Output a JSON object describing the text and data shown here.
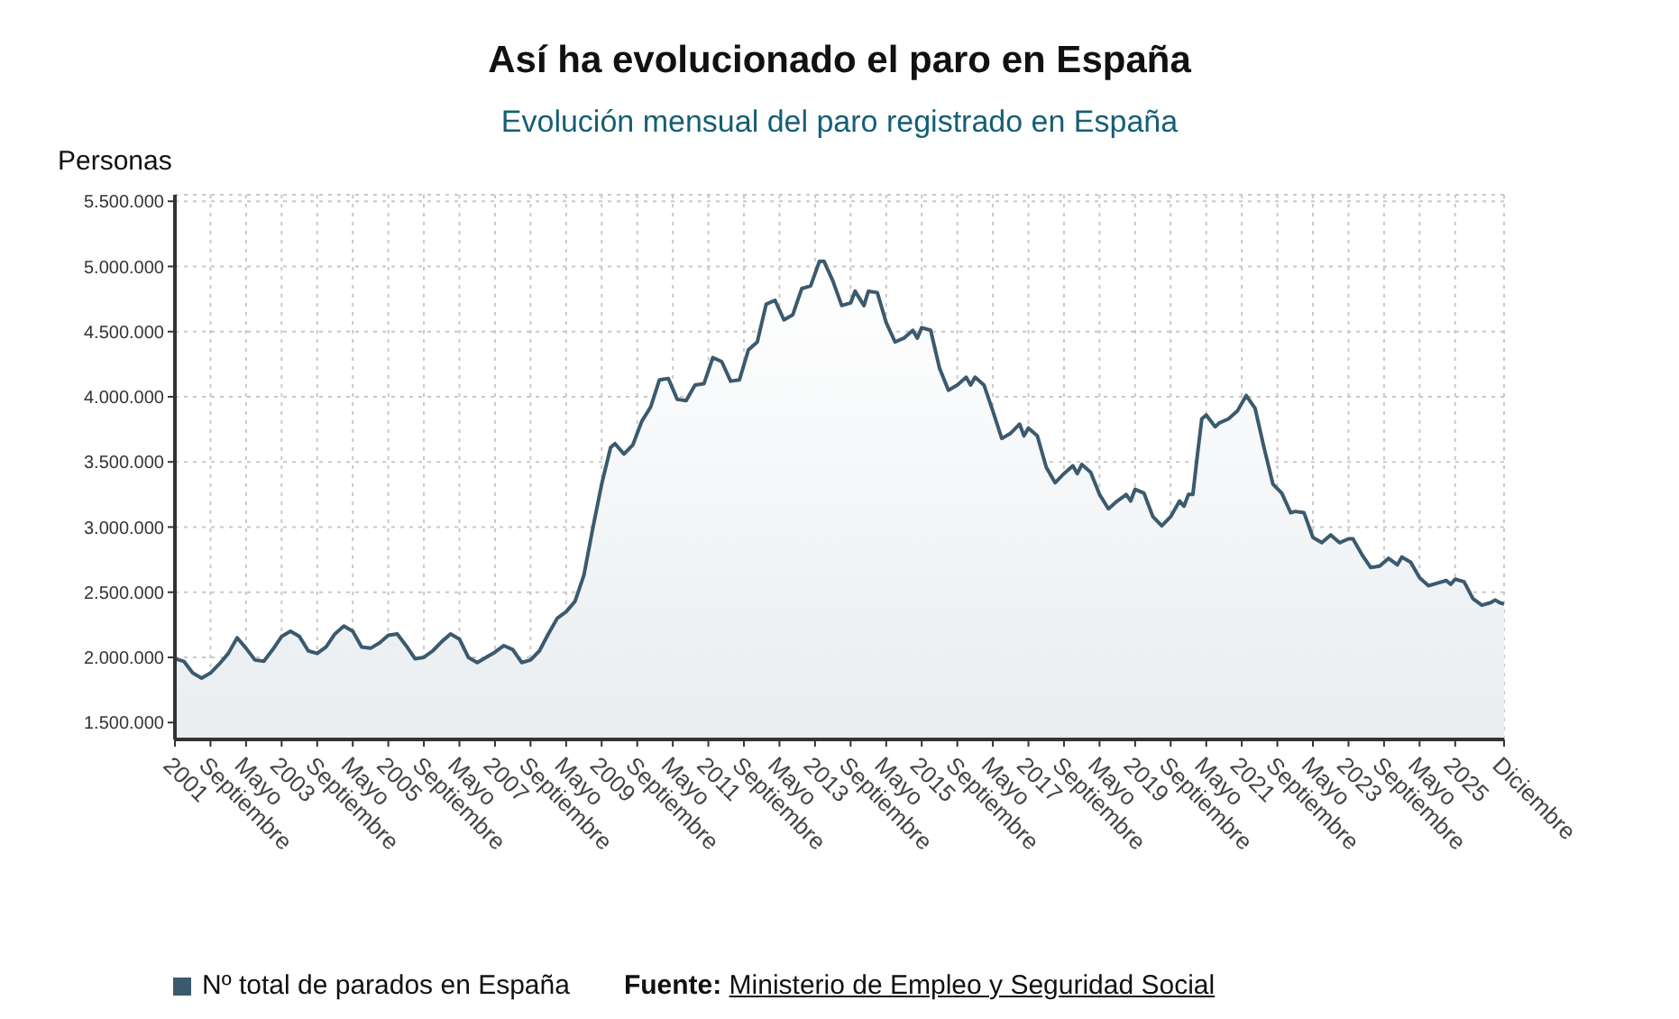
{
  "chart_data": {
    "type": "area",
    "title": "Así ha evolucionado el paro en España",
    "subtitle": "Evolución mensual del paro registrado en España",
    "ylabel": "Personas",
    "annotations": [
      "Fuente: Ministerio de Empleo y Seguridad Social"
    ],
    "x": [
      "2001-01",
      "2001-03",
      "2001-05",
      "2001-07",
      "2001-09",
      "2001-11",
      "2002-01",
      "2002-03",
      "2002-05",
      "2002-07",
      "2002-09",
      "2002-11",
      "2003-01",
      "2003-03",
      "2003-05",
      "2003-07",
      "2003-09",
      "2003-11",
      "2004-01",
      "2004-03",
      "2004-05",
      "2004-07",
      "2004-09",
      "2004-11",
      "2005-01",
      "2005-03",
      "2005-05",
      "2005-07",
      "2005-09",
      "2005-11",
      "2006-01",
      "2006-03",
      "2006-05",
      "2006-07",
      "2006-09",
      "2006-11",
      "2007-01",
      "2007-03",
      "2007-05",
      "2007-07",
      "2007-09",
      "2007-11",
      "2008-01",
      "2008-03",
      "2008-05",
      "2008-07",
      "2008-09",
      "2008-11",
      "2009-01",
      "2009-03",
      "2009-04",
      "2009-06",
      "2009-08",
      "2009-10",
      "2009-12",
      "2010-02",
      "2010-04",
      "2010-06",
      "2010-08",
      "2010-10",
      "2010-12",
      "2011-02",
      "2011-04",
      "2011-06",
      "2011-08",
      "2011-10",
      "2011-12",
      "2012-02",
      "2012-04",
      "2012-06",
      "2012-08",
      "2012-10",
      "2012-12",
      "2013-02",
      "2013-03",
      "2013-05",
      "2013-07",
      "2013-09",
      "2013-10",
      "2013-12",
      "2014-01",
      "2014-03",
      "2014-05",
      "2014-07",
      "2014-09",
      "2014-11",
      "2014-12",
      "2015-01",
      "2015-03",
      "2015-05",
      "2015-07",
      "2015-09",
      "2015-11",
      "2015-12",
      "2016-01",
      "2016-03",
      "2016-05",
      "2016-07",
      "2016-09",
      "2016-11",
      "2016-12",
      "2017-01",
      "2017-03",
      "2017-05",
      "2017-07",
      "2017-09",
      "2017-11",
      "2017-12",
      "2018-01",
      "2018-03",
      "2018-05",
      "2018-07",
      "2018-09",
      "2018-11",
      "2018-12",
      "2019-01",
      "2019-03",
      "2019-05",
      "2019-07",
      "2019-09",
      "2019-11",
      "2019-12",
      "2020-01",
      "2020-02",
      "2020-03",
      "2020-04",
      "2020-05",
      "2020-07",
      "2020-08",
      "2020-10",
      "2020-12",
      "2021-02",
      "2021-04",
      "2021-06",
      "2021-08",
      "2021-10",
      "2021-12",
      "2022-01",
      "2022-03",
      "2022-05",
      "2022-07",
      "2022-09",
      "2022-11",
      "2023-01",
      "2023-02",
      "2023-04",
      "2023-06",
      "2023-08",
      "2023-10",
      "2023-12",
      "2024-01",
      "2024-03",
      "2024-05",
      "2024-07",
      "2024-09",
      "2024-11",
      "2024-12",
      "2025-01",
      "2025-03",
      "2025-05",
      "2025-07",
      "2025-09",
      "2025-10",
      "2025-11",
      "2025-12"
    ],
    "series": [
      {
        "name": "Nº total de parados en España",
        "color": "#3b5a6e",
        "values": [
          1990000,
          1970000,
          1880000,
          1840000,
          1880000,
          1950000,
          2030000,
          2150000,
          2070000,
          1980000,
          1970000,
          2060000,
          2160000,
          2200000,
          2160000,
          2050000,
          2030000,
          2080000,
          2180000,
          2240000,
          2200000,
          2080000,
          2070000,
          2110000,
          2170000,
          2180000,
          2090000,
          1990000,
          2000000,
          2050000,
          2120000,
          2180000,
          2140000,
          2000000,
          1960000,
          2000000,
          2040000,
          2090000,
          2060000,
          1960000,
          1980000,
          2050000,
          2180000,
          2300000,
          2350000,
          2430000,
          2630000,
          2990000,
          3330000,
          3610000,
          3640000,
          3560000,
          3630000,
          3810000,
          3920000,
          4130000,
          4140000,
          3980000,
          3970000,
          4090000,
          4100000,
          4300000,
          4270000,
          4120000,
          4130000,
          4360000,
          4420000,
          4710000,
          4740000,
          4590000,
          4630000,
          4830000,
          4850000,
          5040000,
          5040000,
          4890000,
          4700000,
          4720000,
          4810000,
          4700000,
          4810000,
          4800000,
          4570000,
          4420000,
          4450000,
          4510000,
          4450000,
          4530000,
          4510000,
          4220000,
          4050000,
          4090000,
          4150000,
          4090000,
          4150000,
          4090000,
          3890000,
          3680000,
          3720000,
          3790000,
          3700000,
          3760000,
          3700000,
          3460000,
          3340000,
          3410000,
          3470000,
          3410000,
          3480000,
          3420000,
          3250000,
          3140000,
          3200000,
          3250000,
          3200000,
          3290000,
          3260000,
          3080000,
          3010000,
          3080000,
          3200000,
          3160000,
          3250000,
          3250000,
          3550000,
          3830000,
          3860000,
          3770000,
          3800000,
          3830000,
          3890000,
          4010000,
          3910000,
          3610000,
          3330000,
          3260000,
          3110000,
          3120000,
          3110000,
          2920000,
          2880000,
          2940000,
          2880000,
          2910000,
          2910000,
          2790000,
          2690000,
          2700000,
          2760000,
          2710000,
          2770000,
          2730000,
          2610000,
          2550000,
          2570000,
          2590000,
          2560000,
          2600000,
          2580000,
          2450000,
          2400000,
          2420000,
          2440000,
          2420000,
          2410000
        ]
      }
    ],
    "xlim": [
      "2001-01",
      "2025-12"
    ],
    "xticks": [
      {
        "value": "2001-01",
        "label": "2001"
      },
      {
        "value": "2001-09",
        "label": "Septiembre"
      },
      {
        "value": "2002-05",
        "label": "Mayo"
      },
      {
        "value": "2003-01",
        "label": "2003"
      },
      {
        "value": "2003-09",
        "label": "Septiembre"
      },
      {
        "value": "2004-05",
        "label": "Mayo"
      },
      {
        "value": "2005-01",
        "label": "2005"
      },
      {
        "value": "2005-09",
        "label": "Septiembre"
      },
      {
        "value": "2006-05",
        "label": "Mayo"
      },
      {
        "value": "2007-01",
        "label": "2007"
      },
      {
        "value": "2007-09",
        "label": "Septiembre"
      },
      {
        "value": "2008-05",
        "label": "Mayo"
      },
      {
        "value": "2009-01",
        "label": "2009"
      },
      {
        "value": "2009-09",
        "label": "Septiembre"
      },
      {
        "value": "2010-05",
        "label": "Mayo"
      },
      {
        "value": "2011-01",
        "label": "2011"
      },
      {
        "value": "2011-09",
        "label": "Septiembre"
      },
      {
        "value": "2012-05",
        "label": "Mayo"
      },
      {
        "value": "2013-01",
        "label": "2013"
      },
      {
        "value": "2013-09",
        "label": "Septiembre"
      },
      {
        "value": "2014-05",
        "label": "Mayo"
      },
      {
        "value": "2015-01",
        "label": "2015"
      },
      {
        "value": "2015-09",
        "label": "Septiembre"
      },
      {
        "value": "2016-05",
        "label": "Mayo"
      },
      {
        "value": "2017-01",
        "label": "2017"
      },
      {
        "value": "2017-09",
        "label": "Septiembre"
      },
      {
        "value": "2018-05",
        "label": "Mayo"
      },
      {
        "value": "2019-01",
        "label": "2019"
      },
      {
        "value": "2019-09",
        "label": "Septiembre"
      },
      {
        "value": "2020-05",
        "label": "Mayo"
      },
      {
        "value": "2021-01",
        "label": "2021"
      },
      {
        "value": "2021-09",
        "label": "Septiembre"
      },
      {
        "value": "2022-05",
        "label": "Mayo"
      },
      {
        "value": "2023-01",
        "label": "2023"
      },
      {
        "value": "2023-09",
        "label": "Septiembre"
      },
      {
        "value": "2024-05",
        "label": "Mayo"
      },
      {
        "value": "2025-01",
        "label": "2025"
      },
      {
        "value": "2025-12",
        "label": "Diciembre"
      }
    ],
    "ylim": [
      1370000,
      5550000
    ],
    "yticks": [
      {
        "value": 1500000,
        "label": "1.500.000"
      },
      {
        "value": 2000000,
        "label": "2.000.000"
      },
      {
        "value": 2500000,
        "label": "2.500.000"
      },
      {
        "value": 3000000,
        "label": "3.000.000"
      },
      {
        "value": 3500000,
        "label": "3.500.000"
      },
      {
        "value": 4000000,
        "label": "4.000.000"
      },
      {
        "value": 4500000,
        "label": "4.500.000"
      },
      {
        "value": 5000000,
        "label": "5.000.000"
      },
      {
        "value": 5500000,
        "label": "5.500.000"
      }
    ],
    "grid": true,
    "legend": "bottom left",
    "marker": "none",
    "line_style": "solid"
  }
}
